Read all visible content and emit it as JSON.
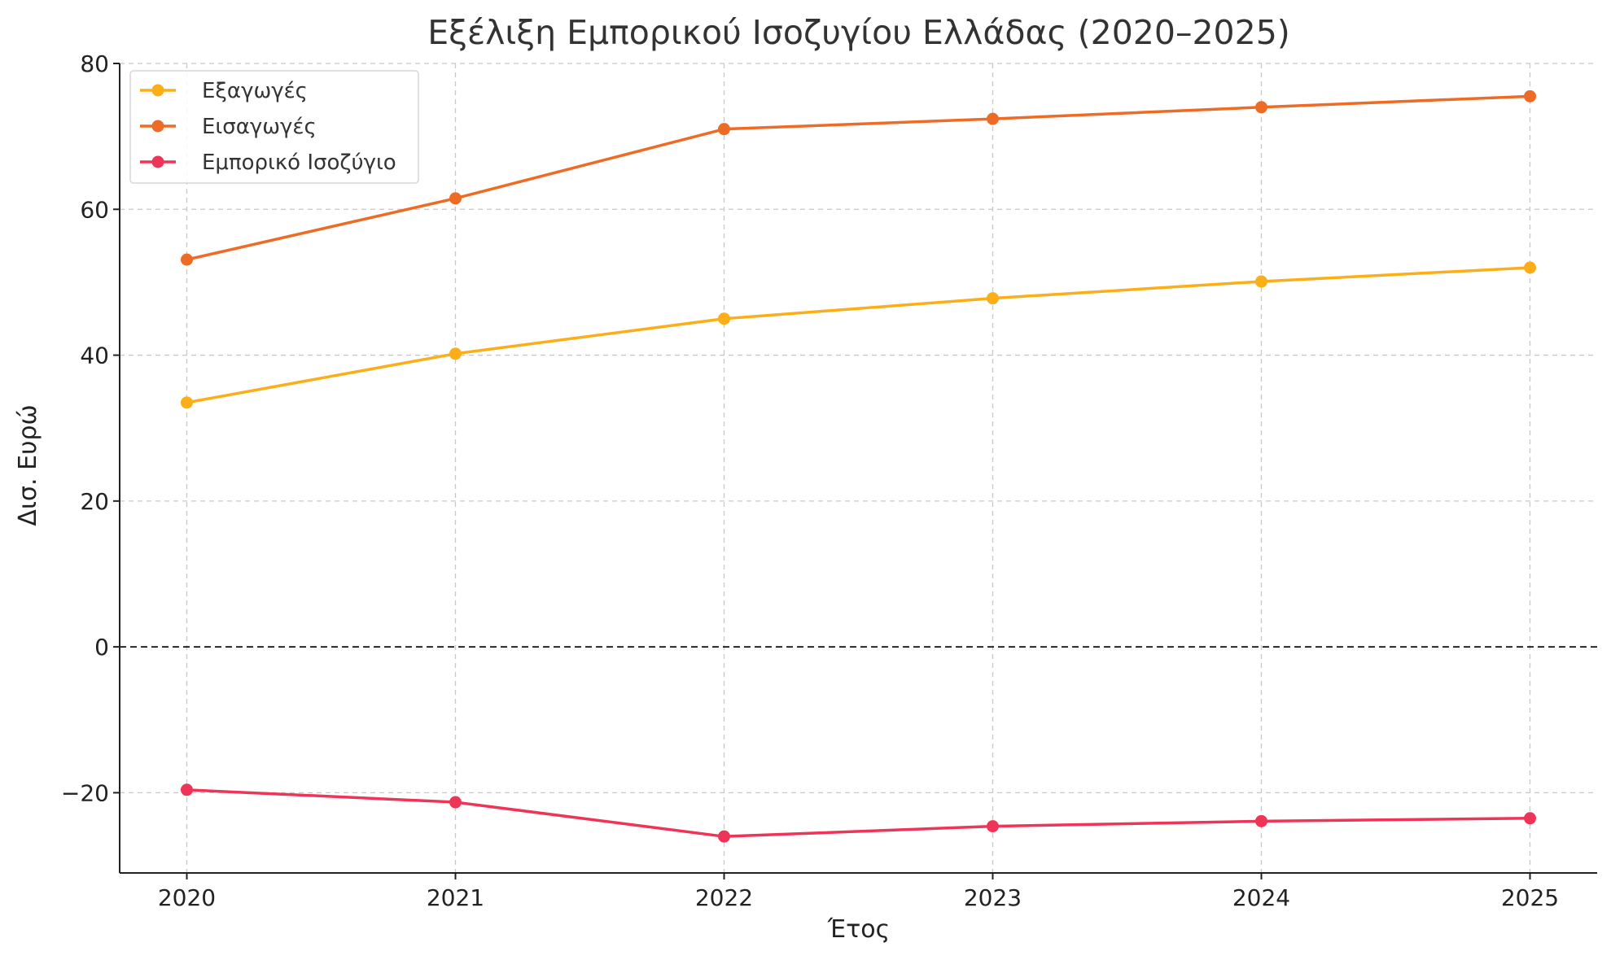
{
  "chart_data": {
    "type": "line",
    "title": "Εξέλιξη Εμπορικού Ισοζυγίου Ελλάδας (2020–2025)",
    "xlabel": "Έτος",
    "ylabel": "Δισ. Ευρώ",
    "x": [
      2020,
      2021,
      2022,
      2023,
      2024,
      2025
    ],
    "x_tick_labels": [
      "2020",
      "2021",
      "2022",
      "2023",
      "2024",
      "2025"
    ],
    "xlim": [
      2019.75,
      2025.25
    ],
    "ylim": [
      -31,
      80
    ],
    "y_ticks": [
      -20,
      0,
      20,
      40,
      60,
      80
    ],
    "y_tick_labels": [
      "−20",
      "0",
      "20",
      "40",
      "60",
      "80"
    ],
    "grid": true,
    "reference_line_y": 0,
    "legend_position": "upper-left",
    "series": [
      {
        "name": "Εξαγωγές",
        "color": "#fbae17",
        "values": [
          33.5,
          40.2,
          45.0,
          47.8,
          50.1,
          52.0
        ]
      },
      {
        "name": "Εισαγωγές",
        "color": "#ee6b26",
        "values": [
          53.1,
          61.5,
          71.0,
          72.4,
          74.0,
          75.5
        ]
      },
      {
        "name": "Εμπορικό Ισοζύγιο",
        "color": "#ee3457",
        "values": [
          -19.6,
          -21.3,
          -26.0,
          -24.6,
          -23.9,
          -23.5
        ]
      }
    ]
  }
}
